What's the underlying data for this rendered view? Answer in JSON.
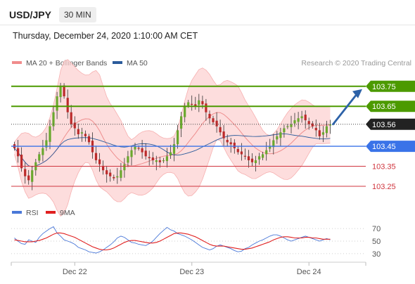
{
  "header": {
    "symbol": "USD/JPY",
    "timeframe": "30 MIN",
    "datetime": "Thursday, December 24, 2020 1:10:00 AM CET"
  },
  "legend": {
    "items": [
      {
        "label": "MA 20 + Bollinger Bands",
        "color": "#f08c8c"
      },
      {
        "label": "MA 50",
        "color": "#2b5b9b"
      }
    ],
    "credit": "Research © 2020 Trading Central"
  },
  "rsi_legend": {
    "items": [
      {
        "label": "RSI",
        "color": "#4a78d8"
      },
      {
        "label": "9MA",
        "color": "#e02020"
      }
    ]
  },
  "colors": {
    "resistance": "#4c9a00",
    "support": "#3a73e8",
    "lower_support": "#d0353e",
    "current": "#222222",
    "arrow": "#2d62a8",
    "bull": "#6aa82e",
    "bear": "#bb2a2a",
    "band": "#fcd2d2"
  },
  "chart_data": [
    {
      "type": "candlestick",
      "series_count": 90,
      "x_tick_labels": [
        "Dec 22",
        "Dec 23",
        "Dec 24"
      ],
      "ylim": [
        103.19,
        103.83
      ],
      "levels": [
        {
          "value": 103.75,
          "label": "103.75",
          "kind": "resistance"
        },
        {
          "value": 103.65,
          "label": "103.65",
          "kind": "resistance"
        },
        {
          "value": 103.56,
          "label": "103.56",
          "kind": "current"
        },
        {
          "value": 103.45,
          "label": "103.45",
          "kind": "pivot"
        },
        {
          "value": 103.35,
          "label": "103.35",
          "kind": "support"
        },
        {
          "value": 103.25,
          "label": "103.25",
          "kind": "support"
        }
      ],
      "close": [
        103.44,
        103.4,
        103.34,
        103.3,
        103.28,
        103.33,
        103.37,
        103.41,
        103.44,
        103.48,
        103.55,
        103.62,
        103.7,
        103.75,
        103.7,
        103.62,
        103.56,
        103.54,
        103.51,
        103.52,
        103.5,
        103.47,
        103.42,
        103.38,
        103.36,
        103.33,
        103.31,
        103.3,
        103.29,
        103.3,
        103.33,
        103.36,
        103.4,
        103.43,
        103.45,
        103.44,
        103.42,
        103.4,
        103.39,
        103.38,
        103.38,
        103.37,
        103.38,
        103.4,
        103.42,
        103.46,
        103.53,
        103.6,
        103.65,
        103.67,
        103.66,
        103.65,
        103.68,
        103.66,
        103.62,
        103.59,
        103.57,
        103.55,
        103.52,
        103.49,
        103.47,
        103.46,
        103.44,
        103.42,
        103.41,
        103.4,
        103.38,
        103.37,
        103.38,
        103.4,
        103.41,
        103.43,
        103.45,
        103.48,
        103.5,
        103.52,
        103.54,
        103.55,
        103.56,
        103.58,
        103.59,
        103.6,
        103.58,
        103.56,
        103.55,
        103.53,
        103.5,
        103.52,
        103.55,
        103.56
      ],
      "legend": [
        "MA 20 + Bollinger Bands",
        "MA 50"
      ],
      "credit": "Research © 2020 Trading Central"
    },
    {
      "type": "line",
      "name": "RSI panel",
      "y_tick_labels": [
        "70",
        "50",
        "30"
      ],
      "ylim": [
        22,
        78
      ],
      "series": [
        {
          "name": "RSI",
          "values": [
            55,
            50,
            46,
            45,
            52,
            50,
            48,
            56,
            62,
            66,
            70,
            73,
            63,
            58,
            52,
            50,
            48,
            45,
            40,
            38,
            36,
            33,
            32,
            31,
            33,
            36,
            40,
            44,
            49,
            55,
            58,
            56,
            52,
            48,
            47,
            45,
            44,
            43,
            46,
            50,
            56,
            62,
            67,
            72,
            68,
            66,
            62,
            60,
            58,
            55,
            52,
            48,
            44,
            40,
            38,
            36,
            38,
            42,
            44,
            42,
            40,
            38,
            35,
            33,
            34,
            38,
            40,
            44,
            47,
            50,
            52,
            55,
            58,
            60,
            60,
            58,
            55,
            52,
            50,
            52,
            54,
            56,
            58,
            56,
            54,
            52,
            50,
            52,
            54,
            52
          ]
        },
        {
          "name": "9MA",
          "values": [
            52,
            51,
            50,
            49,
            49,
            49,
            50,
            51,
            53,
            55,
            58,
            61,
            63,
            63,
            62,
            60,
            58,
            56,
            53,
            50,
            47,
            44,
            41,
            39,
            37,
            36,
            36,
            37,
            39,
            42,
            45,
            48,
            50,
            51,
            51,
            50,
            49,
            48,
            47,
            47,
            48,
            50,
            53,
            56,
            59,
            62,
            63,
            63,
            62,
            61,
            59,
            57,
            54,
            51,
            48,
            45,
            43,
            42,
            42,
            42,
            41,
            40,
            39,
            38,
            37,
            37,
            38,
            39,
            41,
            43,
            45,
            47,
            49,
            52,
            54,
            56,
            57,
            57,
            56,
            55,
            55,
            55,
            56,
            56,
            55,
            55,
            54,
            53,
            53,
            53
          ]
        }
      ]
    }
  ]
}
